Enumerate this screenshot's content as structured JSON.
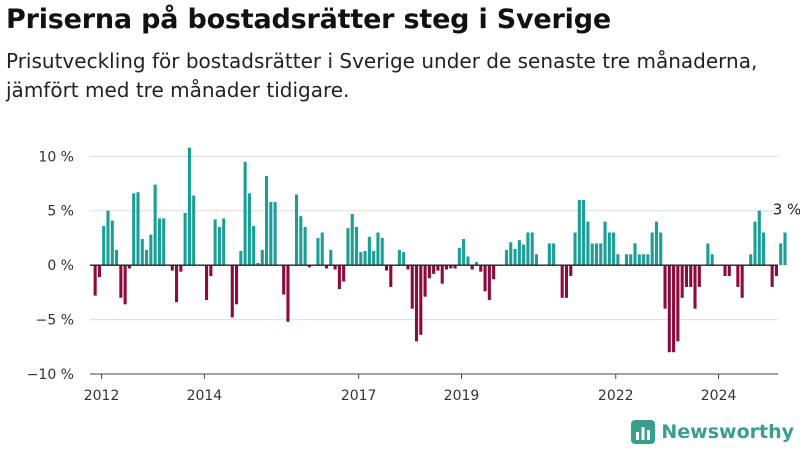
{
  "title": "Priserna på bostadsrätter steg i Sverige",
  "subtitle": "Prisutveckling för bostadsrätter i Sverige under de senaste tre månaderna, jämfört med tre månader tidigare.",
  "brand": "Newsworthy",
  "colors": {
    "positive": "#1a9e96",
    "negative": "#8c0a3c",
    "grid": "#dcdcdc",
    "zero": "#222222",
    "brand": "#3a9e8f"
  },
  "icons": {
    "logo": "bar-chart-logo-icon"
  },
  "chart_data": {
    "type": "bar",
    "x_start": "2011-11",
    "x_end": "2024-12",
    "ylim": [
      -10,
      11.5
    ],
    "y_ticks": [
      10,
      5,
      0,
      -5,
      -10
    ],
    "y_tick_labels": [
      "10 %",
      "5 %",
      "0 %",
      "−5 %",
      "−10 %"
    ],
    "x_ticks": [
      "2012-01",
      "2014-01",
      "2017-01",
      "2019-01",
      "2022-01",
      "2024-01"
    ],
    "x_tick_labels": [
      "2012",
      "2014",
      "2017",
      "2019",
      "2022",
      "2024"
    ],
    "end_label": "3 %",
    "values": [
      -2.8,
      -1.1,
      3.6,
      5.0,
      4.1,
      1.4,
      -3.0,
      -3.6,
      -0.3,
      6.6,
      6.7,
      2.4,
      1.4,
      2.8,
      7.4,
      4.3,
      4.3,
      0.0,
      -0.5,
      -3.4,
      -0.6,
      4.8,
      10.8,
      6.4,
      0.0,
      0.0,
      -3.2,
      -1.0,
      4.2,
      3.5,
      4.3,
      0.0,
      -4.8,
      -3.6,
      1.3,
      9.5,
      6.6,
      3.6,
      0.2,
      1.4,
      8.2,
      5.8,
      5.8,
      0.0,
      -2.7,
      -5.2,
      0.0,
      6.5,
      4.5,
      3.5,
      -0.2,
      0.0,
      2.5,
      3.0,
      -0.3,
      1.4,
      -0.4,
      -2.2,
      -1.5,
      3.4,
      4.7,
      3.5,
      1.2,
      1.3,
      2.6,
      1.3,
      3.0,
      2.5,
      -0.5,
      -2.0,
      0.0,
      1.4,
      1.2,
      -0.4,
      -4.0,
      -7.0,
      -6.4,
      -2.9,
      -1.2,
      -0.8,
      -0.5,
      -1.7,
      -0.4,
      -0.3,
      -0.3,
      1.6,
      2.4,
      0.8,
      -0.4,
      0.3,
      -0.6,
      -2.4,
      -3.2,
      -1.3,
      0.0,
      0.0,
      1.4,
      2.1,
      1.5,
      2.3,
      1.9,
      3.0,
      3.0,
      1.0,
      0.0,
      0.0,
      2.0,
      2.0,
      0.0,
      -3.0,
      -3.0,
      -1.0,
      3.0,
      6.0,
      6.0,
      4.0,
      2.0,
      2.0,
      2.0,
      4.0,
      3.0,
      3.0,
      1.0,
      0.0,
      1.0,
      1.0,
      2.0,
      1.0,
      1.0,
      1.0,
      3.0,
      4.0,
      3.0,
      -4.0,
      -8.0,
      -8.0,
      -7.0,
      -3.0,
      -2.0,
      -2.0,
      -4.0,
      -2.0,
      0.0,
      2.0,
      1.0,
      0.0,
      0.0,
      -1.0,
      -1.0,
      0.0,
      -2.0,
      -3.0,
      0.0,
      1.0,
      4.0,
      5.0,
      3.0,
      0.0,
      -2.0,
      -1.0,
      2.0,
      3.0
    ]
  }
}
